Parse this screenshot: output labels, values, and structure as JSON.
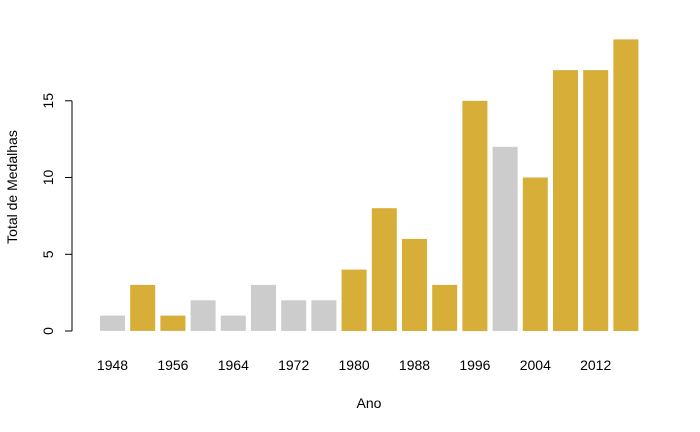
{
  "chart_data": {
    "type": "bar",
    "xlabel": "Ano",
    "ylabel": "Total de Medalhas",
    "categories": [
      "1948",
      "1952",
      "1956",
      "1960",
      "1964",
      "1968",
      "1972",
      "1976",
      "1980",
      "1984",
      "1988",
      "1992",
      "1996",
      "2000",
      "2004",
      "2008",
      "2012",
      "2016"
    ],
    "x_tick_labels": [
      "1948",
      "1956",
      "1964",
      "1972",
      "1980",
      "1988",
      "1996",
      "2004",
      "2012"
    ],
    "values": [
      1,
      3,
      1,
      2,
      1,
      3,
      2,
      2,
      4,
      8,
      6,
      3,
      15,
      12,
      10,
      17,
      17,
      19
    ],
    "highlight": [
      false,
      true,
      true,
      false,
      false,
      false,
      false,
      false,
      true,
      true,
      true,
      true,
      true,
      false,
      true,
      true,
      true,
      true
    ],
    "y_ticks": [
      0,
      5,
      10,
      15
    ],
    "ylim": [
      0,
      19
    ],
    "grid": false,
    "colors": {
      "highlight": "#D6AE38",
      "normal": "#CCCCCC",
      "axis": "#000000"
    }
  }
}
